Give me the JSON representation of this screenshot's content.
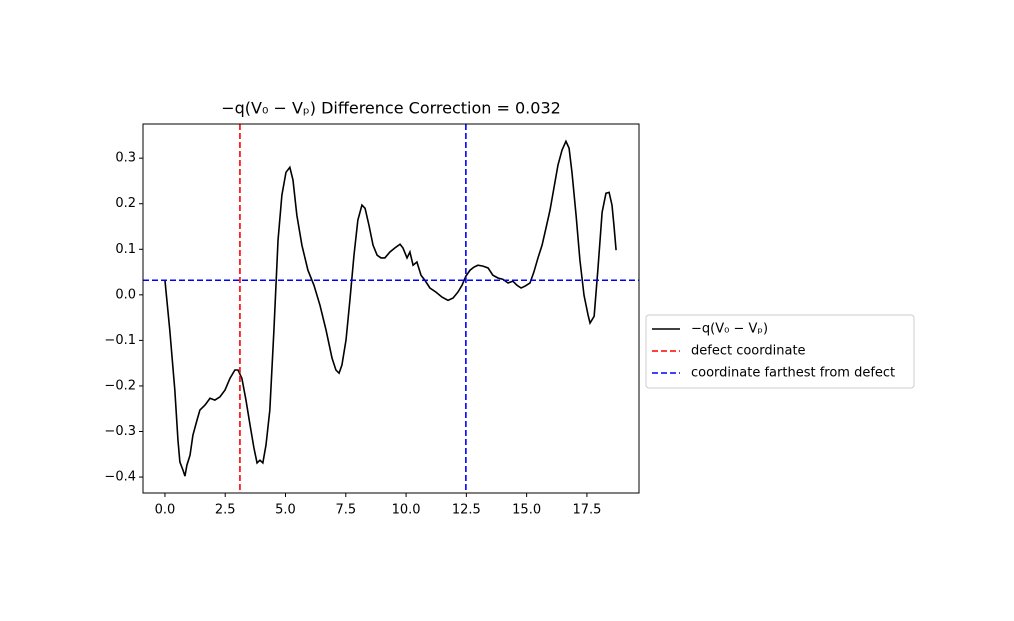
{
  "chart_data": {
    "type": "line",
    "title": "−q(V₀ − Vₚ) Difference Correction = 0.032",
    "x": [
      0,
      0.2,
      0.41,
      0.54,
      0.62,
      0.75,
      0.83,
      0.91,
      1.04,
      1.16,
      1.33,
      1.45,
      1.66,
      1.87,
      2.07,
      2.28,
      2.49,
      2.7,
      2.9,
      3.03,
      3.19,
      3.36,
      3.53,
      3.69,
      3.82,
      3.94,
      4.06,
      4.19,
      4.35,
      4.52,
      4.69,
      4.85,
      5.02,
      5.18,
      5.31,
      5.47,
      5.68,
      5.93,
      6.18,
      6.43,
      6.68,
      6.93,
      7.09,
      7.22,
      7.34,
      7.51,
      7.67,
      7.84,
      8.0,
      8.17,
      8.3,
      8.46,
      8.63,
      8.8,
      8.96,
      9.12,
      9.33,
      9.54,
      9.75,
      9.87,
      10.04,
      10.16,
      10.29,
      10.45,
      10.62,
      10.78,
      10.99,
      11.24,
      11.49,
      11.74,
      11.95,
      12.15,
      12.32,
      12.48,
      12.65,
      12.82,
      12.98,
      13.19,
      13.4,
      13.6,
      13.81,
      14.02,
      14.23,
      14.43,
      14.6,
      14.77,
      14.93,
      15.14,
      15.3,
      15.47,
      15.64,
      15.8,
      15.97,
      16.13,
      16.3,
      16.47,
      16.63,
      16.76,
      16.88,
      17.05,
      17.21,
      17.38,
      17.55,
      17.63,
      17.8,
      17.96,
      18.13,
      18.29,
      18.42,
      18.54,
      18.62,
      18.71
    ],
    "series": [
      {
        "name": "−q(V₀ − Vₚ)",
        "color": "#000000",
        "values": [
          0.032,
          -0.077,
          -0.209,
          -0.319,
          -0.367,
          -0.385,
          -0.398,
          -0.374,
          -0.352,
          -0.308,
          -0.275,
          -0.253,
          -0.242,
          -0.227,
          -0.231,
          -0.224,
          -0.209,
          -0.183,
          -0.165,
          -0.165,
          -0.183,
          -0.231,
          -0.286,
          -0.336,
          -0.369,
          -0.363,
          -0.369,
          -0.33,
          -0.253,
          -0.077,
          0.12,
          0.219,
          0.269,
          0.28,
          0.252,
          0.175,
          0.109,
          0.054,
          0.021,
          -0.023,
          -0.077,
          -0.139,
          -0.165,
          -0.172,
          -0.154,
          -0.099,
          -0.012,
          0.087,
          0.164,
          0.197,
          0.19,
          0.153,
          0.109,
          0.087,
          0.081,
          0.081,
          0.094,
          0.103,
          0.111,
          0.103,
          0.081,
          0.094,
          0.065,
          0.072,
          0.043,
          0.032,
          0.015,
          0.006,
          -0.005,
          -0.012,
          -0.007,
          0.006,
          0.021,
          0.041,
          0.054,
          0.061,
          0.065,
          0.063,
          0.059,
          0.043,
          0.037,
          0.034,
          0.026,
          0.03,
          0.021,
          0.015,
          0.019,
          0.026,
          0.05,
          0.081,
          0.109,
          0.146,
          0.186,
          0.234,
          0.285,
          0.318,
          0.337,
          0.322,
          0.269,
          0.175,
          0.076,
          -0.001,
          -0.045,
          -0.062,
          -0.047,
          0.059,
          0.181,
          0.223,
          0.225,
          0.197,
          0.153,
          0.098
        ]
      }
    ],
    "vlines": [
      {
        "name": "defect coordinate",
        "x": 3.11,
        "color": "#ff0000"
      },
      {
        "name": "coordinate farthest from defect",
        "x": 12.48,
        "color": "#0000ff"
      }
    ],
    "hline": {
      "y": 0.032,
      "color": "#0000ff"
    },
    "xlim": [
      -0.91,
      19.66
    ],
    "ylim": [
      -0.435,
      0.375
    ],
    "xticks": [
      {
        "value": 0,
        "label": "0.0"
      },
      2.5,
      {
        "value": 5,
        "label": "5.0"
      },
      7.5,
      {
        "value": 10,
        "label": "10.0"
      },
      12.5,
      {
        "value": 15,
        "label": "15.0"
      },
      17.5
    ],
    "yticks": [
      {
        "value": -0.4,
        "label": "−0.4"
      },
      {
        "value": -0.3,
        "label": "−0.3"
      },
      {
        "value": -0.2,
        "label": "−0.2"
      },
      {
        "value": -0.1,
        "label": "−0.1"
      },
      {
        "value": 0,
        "label": "0.0"
      },
      0.1,
      0.2,
      0.3
    ],
    "legend": "center left outside"
  }
}
